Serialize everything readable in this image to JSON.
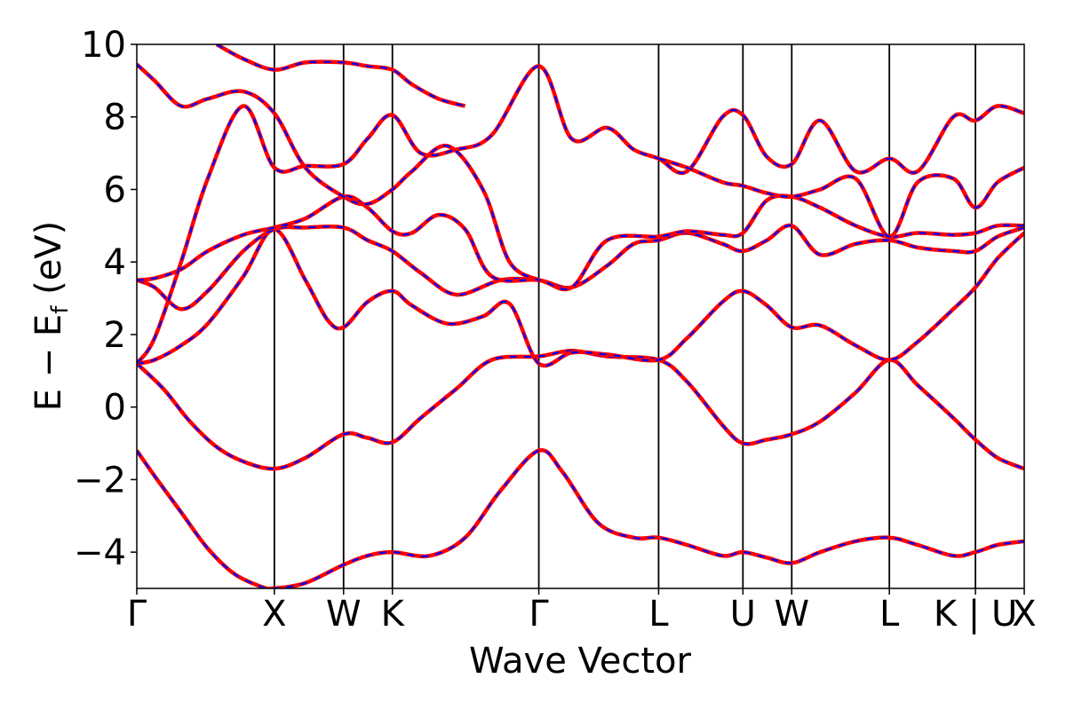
{
  "chart_data": {
    "type": "line",
    "title": "",
    "xlabel": "Wave Vector",
    "ylabel": "E − E_f (eV)",
    "ylabel_main": "E − E",
    "ylabel_sub": "f",
    "ylabel_tail": " (eV)",
    "ylim": [
      -5,
      10
    ],
    "yticks": [
      -4,
      -2,
      0,
      2,
      4,
      6,
      8,
      10
    ],
    "ytick_labels": [
      "−4",
      "−2",
      "0",
      "2",
      "4",
      "6",
      "8",
      "10"
    ],
    "x_range": [
      0,
      1
    ],
    "high_symmetry_points": [
      {
        "label": "Γ",
        "x": 0.0
      },
      {
        "label": "X",
        "x": 0.155
      },
      {
        "label": "W",
        "x": 0.233
      },
      {
        "label": "K",
        "x": 0.288
      },
      {
        "label": "Γ",
        "x": 0.453
      },
      {
        "label": "L",
        "x": 0.588
      },
      {
        "label": "U",
        "x": 0.683
      },
      {
        "label": "W",
        "x": 0.738
      },
      {
        "label": "L",
        "x": 0.848
      },
      {
        "label": "K | U",
        "x": 0.945
      },
      {
        "label": "X",
        "x": 1.0
      }
    ],
    "series_styles": [
      {
        "color": "#ff0000",
        "style": "solid"
      },
      {
        "color": "#0000ff",
        "style": "dashed"
      }
    ],
    "bands": [
      {
        "x": [
          0,
          0.02,
          0.05,
          0.08,
          0.11,
          0.14,
          0.155,
          0.19,
          0.233,
          0.26,
          0.288,
          0.33,
          0.37,
          0.41,
          0.453,
          0.48,
          0.52,
          0.56,
          0.588,
          0.62,
          0.66,
          0.683,
          0.71,
          0.738,
          0.77,
          0.81,
          0.848,
          0.88,
          0.92,
          0.945,
          0.97,
          1.0
        ],
        "y": [
          -1.2,
          -1.9,
          -2.9,
          -3.9,
          -4.6,
          -4.95,
          -5.0,
          -4.85,
          -4.35,
          -4.1,
          -4.0,
          -4.1,
          -3.6,
          -2.3,
          -1.2,
          -1.8,
          -3.2,
          -3.6,
          -3.6,
          -3.8,
          -4.1,
          -4.0,
          -4.15,
          -4.3,
          -4.0,
          -3.7,
          -3.6,
          -3.8,
          -4.1,
          -4.0,
          -3.8,
          -3.7
        ]
      },
      {
        "x": [
          0,
          0.03,
          0.06,
          0.09,
          0.12,
          0.155,
          0.19,
          0.233,
          0.26,
          0.288,
          0.32,
          0.36,
          0.4,
          0.453,
          0.49,
          0.53,
          0.588,
          0.62,
          0.66,
          0.683,
          0.71,
          0.738,
          0.77,
          0.81,
          0.848,
          0.88,
          0.92,
          0.945,
          0.97,
          1.0
        ],
        "y": [
          1.2,
          0.5,
          -0.4,
          -1.1,
          -1.5,
          -1.7,
          -1.4,
          -0.75,
          -0.85,
          -0.97,
          -0.3,
          0.5,
          1.3,
          1.4,
          1.55,
          1.4,
          1.3,
          0.7,
          -0.5,
          -1.0,
          -0.9,
          -0.75,
          -0.4,
          0.4,
          1.3,
          0.6,
          -0.3,
          -0.9,
          -1.4,
          -1.7
        ]
      },
      {
        "x": [
          0,
          0.02,
          0.05,
          0.08,
          0.12,
          0.155,
          0.19,
          0.215,
          0.233,
          0.26,
          0.288,
          0.31,
          0.35,
          0.39,
          0.42,
          0.453,
          0.49,
          0.53,
          0.588,
          0.62,
          0.66,
          0.683,
          0.71,
          0.738,
          0.77,
          0.81,
          0.848,
          0.88,
          0.92,
          0.945,
          0.97,
          1.0
        ],
        "y": [
          1.2,
          1.3,
          1.7,
          2.3,
          3.6,
          4.9,
          3.5,
          2.4,
          2.2,
          2.9,
          3.2,
          2.8,
          2.3,
          2.5,
          2.85,
          1.2,
          1.5,
          1.45,
          1.3,
          1.9,
          2.9,
          3.2,
          2.8,
          2.2,
          2.25,
          1.7,
          1.3,
          1.8,
          2.7,
          3.3,
          4.1,
          4.8
        ]
      },
      {
        "x": [
          0,
          0.02,
          0.05,
          0.08,
          0.12,
          0.155,
          0.19,
          0.233,
          0.26,
          0.288,
          0.32,
          0.36,
          0.41,
          0.453,
          0.49,
          0.53,
          0.56,
          0.588,
          0.62,
          0.66,
          0.683,
          0.71,
          0.738,
          0.77,
          0.81,
          0.848,
          0.88,
          0.92,
          0.945,
          0.97,
          1.0
        ],
        "y": [
          3.5,
          3.3,
          2.7,
          3.2,
          4.3,
          4.9,
          4.95,
          4.95,
          4.6,
          4.3,
          3.7,
          3.1,
          3.5,
          3.5,
          3.3,
          3.9,
          4.5,
          4.6,
          4.8,
          4.5,
          4.3,
          4.6,
          5.0,
          4.2,
          4.5,
          4.6,
          4.4,
          4.3,
          4.3,
          4.7,
          4.95
        ]
      },
      {
        "x": [
          0,
          0.02,
          0.05,
          0.08,
          0.12,
          0.155,
          0.19,
          0.233,
          0.26,
          0.288,
          0.31,
          0.34,
          0.37,
          0.4,
          0.453,
          0.49,
          0.53,
          0.588,
          0.62,
          0.66,
          0.683,
          0.71,
          0.738,
          0.77,
          0.81,
          0.848,
          0.88,
          0.92,
          0.945,
          0.97,
          1.0
        ],
        "y": [
          3.5,
          3.55,
          3.8,
          4.3,
          4.75,
          4.95,
          5.2,
          5.8,
          5.5,
          4.85,
          4.8,
          5.3,
          4.9,
          3.6,
          3.5,
          3.3,
          4.6,
          4.7,
          4.85,
          4.75,
          4.8,
          5.7,
          5.8,
          5.5,
          5.0,
          4.7,
          4.8,
          4.75,
          4.8,
          5.0,
          5.0
        ]
      },
      {
        "x": [
          0,
          0.02,
          0.05,
          0.08,
          0.12,
          0.155,
          0.19,
          0.233,
          0.26,
          0.288,
          0.32,
          0.36,
          0.4,
          0.453,
          0.49,
          0.53,
          0.56,
          0.588,
          0.62,
          0.66,
          0.683,
          0.71,
          0.738,
          0.77,
          0.81,
          0.848,
          0.88,
          0.92,
          0.945,
          0.97,
          1.0
        ],
        "y": [
          1.2,
          1.9,
          4.0,
          6.3,
          8.3,
          6.6,
          6.65,
          6.7,
          7.4,
          8.05,
          7.0,
          7.1,
          7.5,
          9.4,
          7.4,
          7.7,
          7.1,
          6.85,
          6.5,
          8.0,
          8.05,
          6.9,
          6.7,
          7.9,
          6.5,
          6.85,
          6.5,
          8.0,
          7.9,
          8.3,
          8.1
        ]
      },
      {
        "x": [
          0,
          0.02,
          0.05,
          0.08,
          0.12,
          0.155,
          0.19,
          0.233,
          0.26,
          0.288,
          0.31,
          0.35,
          0.39,
          0.42,
          0.453
        ],
        "y": [
          9.45,
          9.0,
          8.3,
          8.5,
          8.7,
          8.1,
          6.6,
          5.8,
          5.6,
          6.0,
          6.5,
          7.2,
          6.0,
          4.0,
          3.5
        ]
      },
      {
        "x": [
          0.588,
          0.62,
          0.66,
          0.683,
          0.71,
          0.738,
          0.77,
          0.81,
          0.848,
          0.88,
          0.92,
          0.945,
          0.97,
          1.0
        ],
        "y": [
          6.85,
          6.6,
          6.2,
          6.1,
          5.9,
          5.8,
          6.0,
          6.3,
          4.7,
          6.2,
          6.3,
          5.5,
          6.2,
          6.6
        ]
      },
      {
        "x": [
          0.09,
          0.12,
          0.155,
          0.19,
          0.233,
          0.26,
          0.288,
          0.31,
          0.34,
          0.37
        ],
        "y": [
          10.0,
          9.6,
          9.3,
          9.5,
          9.5,
          9.4,
          9.3,
          8.9,
          8.5,
          8.3
        ]
      }
    ]
  }
}
